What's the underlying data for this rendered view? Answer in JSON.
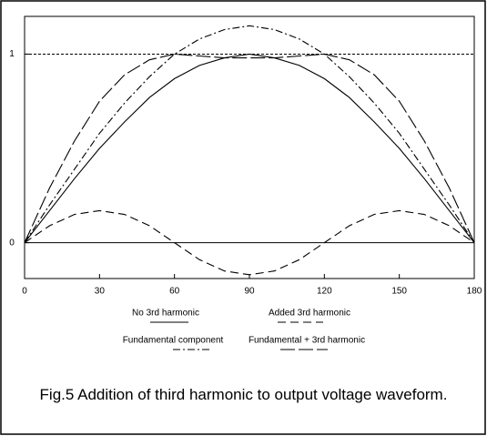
{
  "chart_data": {
    "type": "line",
    "x": [
      0,
      10,
      20,
      30,
      40,
      50,
      60,
      70,
      80,
      90,
      100,
      110,
      120,
      130,
      140,
      150,
      160,
      170,
      180
    ],
    "series": [
      {
        "name": "No 3rd harmonic",
        "color": "#000000",
        "dash": "solid",
        "values": [
          0,
          0.17,
          0.34,
          0.5,
          0.64,
          0.77,
          0.87,
          0.94,
          0.98,
          1,
          0.98,
          0.94,
          0.87,
          0.77,
          0.64,
          0.5,
          0.34,
          0.17,
          0
        ]
      },
      {
        "name": "Added 3rd harmonic",
        "color": "#000000",
        "dash": "dash",
        "values": [
          0,
          0.09,
          0.15,
          0.17,
          0.15,
          0.09,
          0,
          -0.09,
          -0.15,
          -0.17,
          -0.15,
          -0.09,
          0,
          0.09,
          0.15,
          0.17,
          0.15,
          0.09,
          0
        ]
      },
      {
        "name": "Fundamental component",
        "color": "#000000",
        "dash": "dashdot",
        "values": [
          0,
          0.2,
          0.39,
          0.58,
          0.74,
          0.88,
          1.0,
          1.08,
          1.13,
          1.15,
          1.13,
          1.08,
          1.0,
          0.88,
          0.74,
          0.58,
          0.39,
          0.2,
          0
        ]
      },
      {
        "name": "Fundamental + 3rd harmonic",
        "color": "#000000",
        "dash": "longdash",
        "values": [
          0,
          0.29,
          0.54,
          0.75,
          0.89,
          0.97,
          1.0,
          0.99,
          0.98,
          0.98,
          0.98,
          0.99,
          1.0,
          0.97,
          0.89,
          0.75,
          0.54,
          0.29,
          0
        ]
      }
    ],
    "xlim": [
      0,
      180
    ],
    "xticks": [
      0,
      30,
      60,
      90,
      120,
      150,
      180
    ],
    "ylim": [
      -0.19,
      1.2
    ],
    "yticks": [
      0,
      1
    ],
    "grid": true,
    "caption": "Fig.5  Addition of third harmonic to output voltage waveform."
  }
}
